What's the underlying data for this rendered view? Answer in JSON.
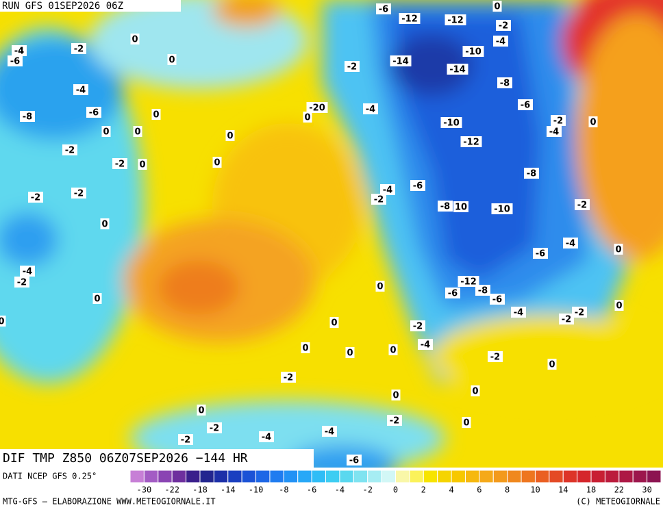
{
  "header": {
    "run": "RUN GFS 01SEP2026 06Z"
  },
  "map": {
    "contour_labels": [
      "-6",
      "-12",
      "-12",
      "0",
      "-2",
      "-4",
      "-4",
      "-2",
      "0",
      "-6",
      "0",
      "-14",
      "-10",
      "-14",
      "-2",
      "-4",
      "-8",
      "-6",
      "-8",
      "0",
      "-6",
      "-20",
      "-4",
      "0",
      "-2",
      "0",
      "-10",
      "0",
      "0",
      "-4",
      "0",
      "-12",
      "-2",
      "-2",
      "0",
      "0",
      "-8",
      "-6",
      "-4",
      "-2",
      "-2",
      "-2",
      "-8",
      "10",
      "-10",
      "-2",
      "0",
      "-4",
      "-6",
      "0",
      "-4",
      "-2",
      "-12",
      "0",
      "-6",
      "-8",
      "-6",
      "0",
      "0",
      "-4",
      "-2",
      "-2",
      "0",
      "0",
      "-2",
      "-4",
      "0",
      "0",
      "0",
      "-2",
      "0",
      "-2",
      "0",
      "0",
      "0",
      "-2",
      "0",
      "-2",
      "-4",
      "-4",
      "-2",
      "-6"
    ]
  },
  "footer": {
    "field": "DIF TMP Z850 06Z07SEP2026 −144 HR",
    "source": "DATI NCEP GFS 0.25°",
    "credit": "MTG-GFS — ELABORAZIONE WWW.METEOGIORNALE.IT",
    "copyright": "(C) METEOGIORNALE"
  },
  "colorbar": {
    "labels": [
      -30,
      -22,
      -18,
      -14,
      -10,
      -8,
      -6,
      -4,
      -2,
      0,
      2,
      4,
      6,
      8,
      10,
      14,
      18,
      22,
      30
    ],
    "colors": [
      "#c77fd6",
      "#a35cc4",
      "#8a44b3",
      "#6e2f9e",
      "#3a1f8c",
      "#22258f",
      "#1c2fa8",
      "#1a3fc0",
      "#1b52d6",
      "#1d66e6",
      "#1f7cf0",
      "#2292f5",
      "#27a8f7",
      "#2fbdf6",
      "#3dcdf2",
      "#5ad8ef",
      "#7fe3f0",
      "#a6edf3",
      "#d2f7f6",
      "#f9f7a8",
      "#fbf25a",
      "#f7e400",
      "#f5d400",
      "#f7c800",
      "#f6b80e",
      "#f5a91a",
      "#f39a1c",
      "#f0881d",
      "#ee761f",
      "#ea5f22",
      "#e44a25",
      "#dd3428",
      "#d5262b",
      "#c81f33",
      "#bb1b3c",
      "#ad1845",
      "#9c164c",
      "#8c1451"
    ]
  }
}
